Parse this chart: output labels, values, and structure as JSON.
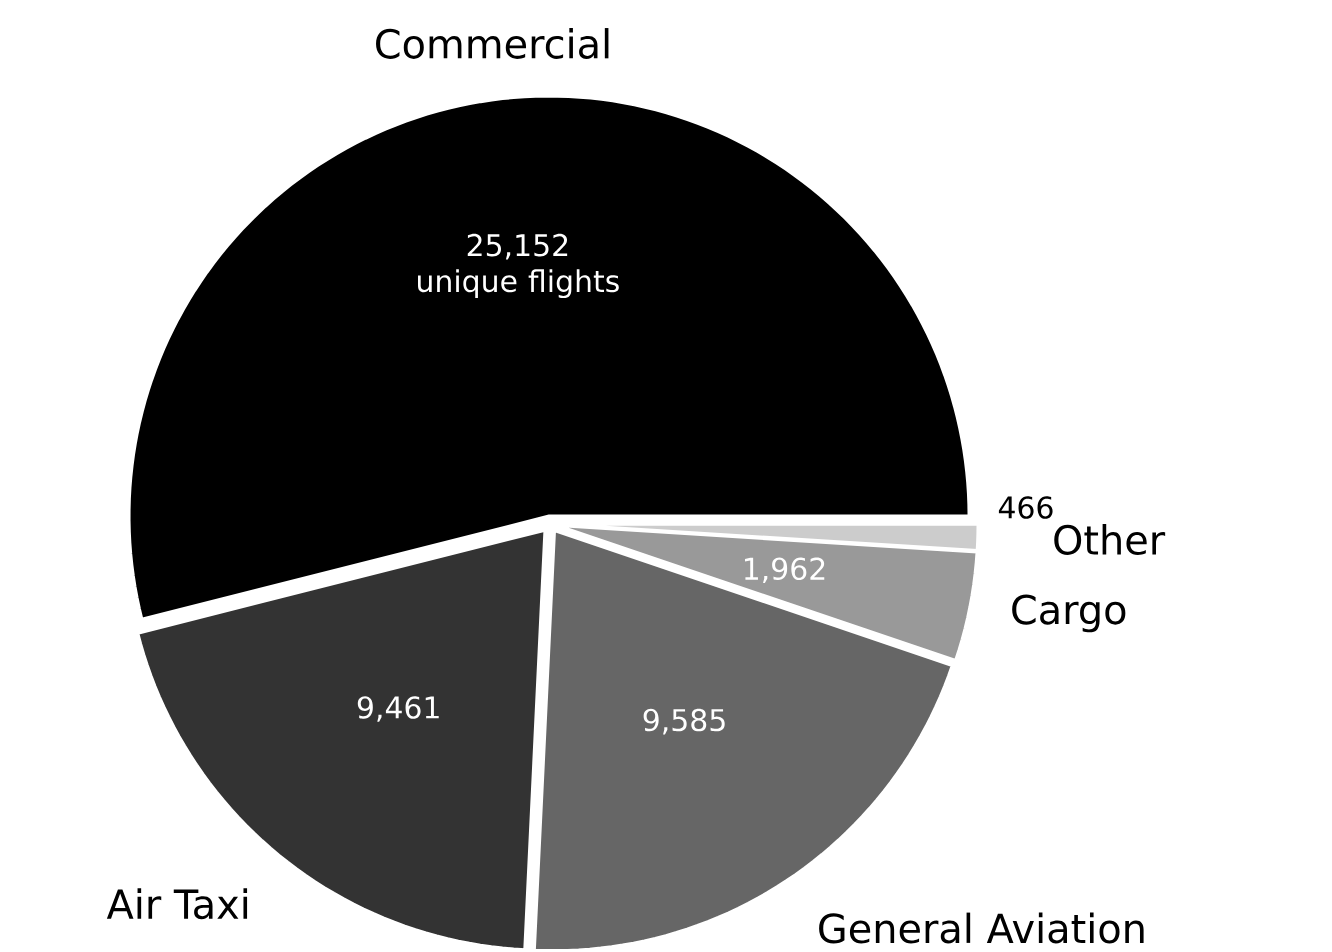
{
  "chart_data": {
    "type": "pie",
    "categories": [
      "Commercial",
      "Air Taxi",
      "General Aviation",
      "Cargo",
      "Other"
    ],
    "values": [
      25152,
      9461,
      9585,
      1962,
      466
    ],
    "colors": [
      "#000000",
      "#333333",
      "#666666",
      "#999999",
      "#cccccc"
    ],
    "value_labels": [
      "25,152 unique flights",
      "9,461",
      "9,585",
      "1,962",
      "466"
    ]
  }
}
